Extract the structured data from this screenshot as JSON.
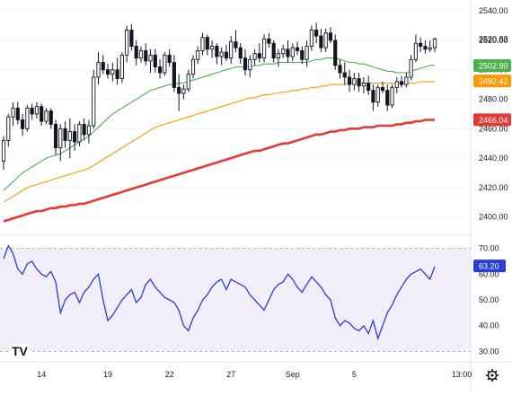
{
  "chart_data": [
    {
      "type": "candlestick",
      "ylim": [
        2390,
        2545
      ],
      "ylabels": [
        "2540.00",
        "2520.00",
        "2500.00",
        "2480.00",
        "2460.00",
        "2440.00",
        "2420.00",
        "2400.00"
      ],
      "yticks": [
        2540,
        2520,
        2500,
        2480,
        2460,
        2440,
        2420,
        2400
      ],
      "last_price": "2520.83",
      "candles": [
        [
          2438,
          2455,
          2432,
          2452
        ],
        [
          2452,
          2470,
          2448,
          2468
        ],
        [
          2468,
          2478,
          2462,
          2474
        ],
        [
          2474,
          2478,
          2463,
          2466
        ],
        [
          2466,
          2470,
          2455,
          2460
        ],
        [
          2460,
          2476,
          2458,
          2474
        ],
        [
          2474,
          2477,
          2466,
          2470
        ],
        [
          2470,
          2478,
          2467,
          2475
        ],
        [
          2475,
          2477,
          2462,
          2465
        ],
        [
          2465,
          2474,
          2463,
          2472
        ],
        [
          2472,
          2474,
          2460,
          2463
        ],
        [
          2463,
          2466,
          2442,
          2447
        ],
        [
          2447,
          2463,
          2438,
          2460
        ],
        [
          2460,
          2465,
          2447,
          2452
        ],
        [
          2452,
          2467,
          2440,
          2458
        ],
        [
          2458,
          2463,
          2445,
          2451
        ],
        [
          2451,
          2465,
          2448,
          2463
        ],
        [
          2463,
          2467,
          2452,
          2456
        ],
        [
          2456,
          2466,
          2450,
          2462
        ],
        [
          2462,
          2500,
          2460,
          2495
        ],
        [
          2495,
          2512,
          2490,
          2505
        ],
        [
          2505,
          2510,
          2497,
          2500
        ],
        [
          2500,
          2504,
          2494,
          2497
        ],
        [
          2497,
          2505,
          2492,
          2500
        ],
        [
          2500,
          2508,
          2490,
          2494
        ],
        [
          2494,
          2512,
          2491,
          2510
        ],
        [
          2510,
          2530,
          2505,
          2527
        ],
        [
          2527,
          2531,
          2513,
          2516
        ],
        [
          2516,
          2520,
          2503,
          2508
        ],
        [
          2508,
          2516,
          2505,
          2513
        ],
        [
          2513,
          2518,
          2503,
          2506
        ],
        [
          2506,
          2514,
          2498,
          2510
        ],
        [
          2510,
          2514,
          2498,
          2502
        ],
        [
          2502,
          2507,
          2494,
          2498
        ],
        [
          2498,
          2512,
          2496,
          2510
        ],
        [
          2510,
          2514,
          2502,
          2505
        ],
        [
          2505,
          2510,
          2485,
          2488
        ],
        [
          2488,
          2497,
          2472,
          2484
        ],
        [
          2484,
          2490,
          2480,
          2487
        ],
        [
          2487,
          2500,
          2485,
          2497
        ],
        [
          2497,
          2510,
          2494,
          2507
        ],
        [
          2507,
          2516,
          2504,
          2513
        ],
        [
          2513,
          2525,
          2510,
          2522
        ],
        [
          2522,
          2524,
          2510,
          2514
        ],
        [
          2514,
          2520,
          2508,
          2516
        ],
        [
          2516,
          2518,
          2504,
          2509
        ],
        [
          2509,
          2515,
          2503,
          2512
        ],
        [
          2512,
          2517,
          2506,
          2508
        ],
        [
          2508,
          2523,
          2504,
          2519
        ],
        [
          2519,
          2527,
          2512,
          2515
        ],
        [
          2515,
          2518,
          2504,
          2508
        ],
        [
          2508,
          2514,
          2496,
          2500
        ],
        [
          2500,
          2510,
          2495,
          2507
        ],
        [
          2507,
          2514,
          2503,
          2511
        ],
        [
          2511,
          2518,
          2505,
          2508
        ],
        [
          2508,
          2524,
          2505,
          2521
        ],
        [
          2521,
          2525,
          2515,
          2518
        ],
        [
          2518,
          2520,
          2505,
          2508
        ],
        [
          2508,
          2514,
          2502,
          2511
        ],
        [
          2511,
          2517,
          2508,
          2514
        ],
        [
          2514,
          2520,
          2505,
          2509
        ],
        [
          2509,
          2518,
          2506,
          2515
        ],
        [
          2515,
          2519,
          2510,
          2513
        ],
        [
          2513,
          2516,
          2504,
          2507
        ],
        [
          2507,
          2520,
          2502,
          2516
        ],
        [
          2516,
          2530,
          2513,
          2527
        ],
        [
          2527,
          2532,
          2518,
          2523
        ],
        [
          2523,
          2528,
          2512,
          2515
        ],
        [
          2515,
          2528,
          2512,
          2525
        ],
        [
          2525,
          2529,
          2518,
          2520
        ],
        [
          2520,
          2524,
          2500,
          2503
        ],
        [
          2503,
          2507,
          2494,
          2498
        ],
        [
          2498,
          2505,
          2490,
          2495
        ],
        [
          2495,
          2500,
          2485,
          2490
        ],
        [
          2490,
          2498,
          2486,
          2494
        ],
        [
          2494,
          2498,
          2485,
          2489
        ],
        [
          2489,
          2495,
          2484,
          2491
        ],
        [
          2491,
          2496,
          2483,
          2486
        ],
        [
          2486,
          2490,
          2472,
          2478
        ],
        [
          2478,
          2490,
          2475,
          2488
        ],
        [
          2488,
          2492,
          2484,
          2486
        ],
        [
          2486,
          2490,
          2472,
          2476
        ],
        [
          2476,
          2490,
          2474,
          2488
        ],
        [
          2488,
          2495,
          2484,
          2492
        ],
        [
          2492,
          2496,
          2488,
          2490
        ],
        [
          2490,
          2498,
          2488,
          2495
        ],
        [
          2495,
          2510,
          2493,
          2507
        ],
        [
          2507,
          2524,
          2505,
          2518
        ],
        [
          2518,
          2522,
          2512,
          2516
        ],
        [
          2516,
          2520,
          2511,
          2514
        ],
        [
          2514,
          2520,
          2512,
          2515
        ],
        [
          2515,
          2522,
          2512,
          2521
        ]
      ],
      "lines": [
        {
          "color": "#4caf50",
          "values": [
            2418,
            2421,
            2424,
            2427,
            2430,
            2432,
            2434,
            2436,
            2438,
            2440,
            2441,
            2442,
            2443,
            2445,
            2447,
            2449,
            2451,
            2453,
            2455,
            2458,
            2461,
            2464,
            2467,
            2470,
            2472,
            2474,
            2476,
            2478,
            2480,
            2482,
            2484,
            2486,
            2487,
            2488,
            2489,
            2490,
            2490,
            2491,
            2491,
            2492,
            2493,
            2494,
            2495,
            2496,
            2497,
            2498,
            2499,
            2500,
            2501,
            2502,
            2502,
            2502,
            2502,
            2503,
            2503,
            2504,
            2504,
            2504,
            2505,
            2505,
            2505,
            2505,
            2505,
            2505,
            2505,
            2506,
            2507,
            2507,
            2508,
            2508,
            2508,
            2507,
            2506,
            2505,
            2505,
            2504,
            2504,
            2503,
            2502,
            2501,
            2500,
            2499,
            2499,
            2498,
            2498,
            2498,
            2499,
            2500,
            2501,
            2502,
            2503,
            2503
          ]
        },
        {
          "color": "#ff9800",
          "values": [
            2410,
            2412,
            2414,
            2416,
            2418,
            2420,
            2421,
            2422,
            2423,
            2424,
            2425,
            2426,
            2427,
            2428,
            2429,
            2430,
            2431,
            2432,
            2433,
            2435,
            2437,
            2439,
            2441,
            2443,
            2445,
            2447,
            2449,
            2451,
            2453,
            2455,
            2457,
            2459,
            2461,
            2462,
            2463,
            2464,
            2465,
            2466,
            2467,
            2468,
            2469,
            2470,
            2471,
            2472,
            2473,
            2474,
            2475,
            2476,
            2477,
            2478,
            2479,
            2480,
            2481,
            2481,
            2482,
            2483,
            2483,
            2484,
            2484,
            2485,
            2485,
            2486,
            2486,
            2487,
            2487,
            2488,
            2488,
            2489,
            2489,
            2490,
            2490,
            2490,
            2490,
            2491,
            2491,
            2491,
            2491,
            2491,
            2491,
            2491,
            2491,
            2491,
            2491,
            2491,
            2491,
            2491,
            2491,
            2491,
            2492,
            2492,
            2492,
            2492
          ]
        },
        {
          "color": "#e53935",
          "values": [
            2397,
            2398,
            2399,
            2400,
            2401,
            2402,
            2403,
            2404,
            2404,
            2405,
            2406,
            2406,
            2407,
            2407,
            2408,
            2408,
            2409,
            2409,
            2410,
            2411,
            2412,
            2413,
            2414,
            2415,
            2416,
            2417,
            2418,
            2419,
            2420,
            2421,
            2422,
            2423,
            2424,
            2425,
            2426,
            2427,
            2428,
            2429,
            2430,
            2431,
            2432,
            2433,
            2434,
            2435,
            2436,
            2437,
            2438,
            2439,
            2440,
            2441,
            2442,
            2443,
            2444,
            2445,
            2445,
            2446,
            2447,
            2448,
            2449,
            2450,
            2450,
            2451,
            2452,
            2453,
            2454,
            2455,
            2456,
            2456,
            2457,
            2458,
            2458,
            2459,
            2459,
            2460,
            2460,
            2460,
            2461,
            2461,
            2461,
            2462,
            2462,
            2462,
            2462,
            2463,
            2463,
            2464,
            2464,
            2465,
            2465,
            2466,
            2466,
            2466
          ]
        }
      ],
      "badges": [
        {
          "label": "2502.90",
          "value": 2502.9,
          "color": "#4caf50"
        },
        {
          "label": "2492.42",
          "value": 2492.42,
          "color": "#ff9800"
        },
        {
          "label": "2466.04",
          "value": 2466.04,
          "color": "#e53935"
        }
      ]
    },
    {
      "type": "line",
      "ylim": [
        27,
        73
      ],
      "ylabels": [
        "70.00",
        "60.00",
        "50.00",
        "40.00",
        "30.00"
      ],
      "yticks": [
        70,
        60,
        50,
        40,
        30
      ],
      "band": [
        30,
        70
      ],
      "last_value": 63.2,
      "last_label": "63.20",
      "color": "#2b3dd6",
      "values": [
        66,
        71,
        68,
        62,
        60,
        64,
        65,
        62,
        60,
        59,
        61,
        57,
        45,
        50,
        52,
        53,
        49,
        53,
        55,
        58,
        60,
        50,
        42,
        44,
        47,
        50,
        52,
        54,
        49,
        51,
        56,
        58,
        55,
        53,
        51,
        50,
        49,
        46,
        40,
        38,
        43,
        46,
        50,
        52,
        55,
        57,
        58,
        54,
        58,
        57,
        56,
        55,
        52,
        50,
        48,
        46,
        50,
        54,
        56,
        57,
        60,
        58,
        55,
        53,
        56,
        59,
        57,
        55,
        52,
        50,
        43,
        40,
        42,
        41,
        39,
        38,
        40,
        37,
        42,
        35,
        40,
        45,
        48,
        52,
        55,
        58,
        60,
        61,
        62,
        60,
        58,
        63
      ],
      "color2": "#2b3dd6"
    }
  ],
  "x_axis": {
    "ticks": [
      {
        "label": "14",
        "i": 8
      },
      {
        "label": "19",
        "i": 22
      },
      {
        "label": "22",
        "i": 35
      },
      {
        "label": "27",
        "i": 48
      },
      {
        "label": "Sep",
        "i": 61
      },
      {
        "label": "5",
        "i": 74
      },
      {
        "label": "13:00",
        "i": 86
      }
    ]
  },
  "icons": {
    "logo": "tradingview-logo-icon",
    "settings": "gear-icon"
  }
}
